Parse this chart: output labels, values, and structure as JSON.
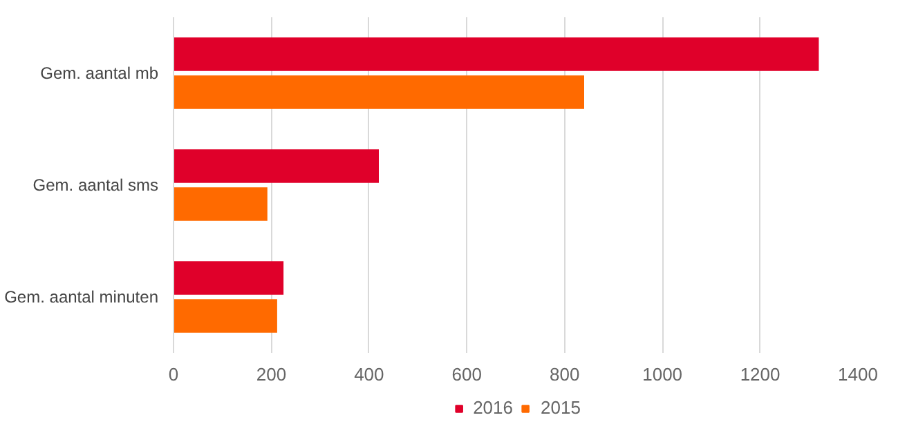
{
  "chart_data": {
    "type": "bar",
    "orientation": "horizontal",
    "categories": [
      "Gem. aantal mb",
      "Gem. aantal sms",
      "Gem. aantal minuten"
    ],
    "series": [
      {
        "name": "2016",
        "color": "#e0002a",
        "values": [
          1320,
          420,
          225
        ]
      },
      {
        "name": "2015",
        "color": "#ff6a00",
        "values": [
          840,
          192,
          212
        ]
      }
    ],
    "xlim": [
      0,
      1400
    ],
    "xticks": [
      0,
      200,
      400,
      600,
      800,
      1000,
      1200,
      1400
    ],
    "grid": "x",
    "legend": "bottom"
  }
}
